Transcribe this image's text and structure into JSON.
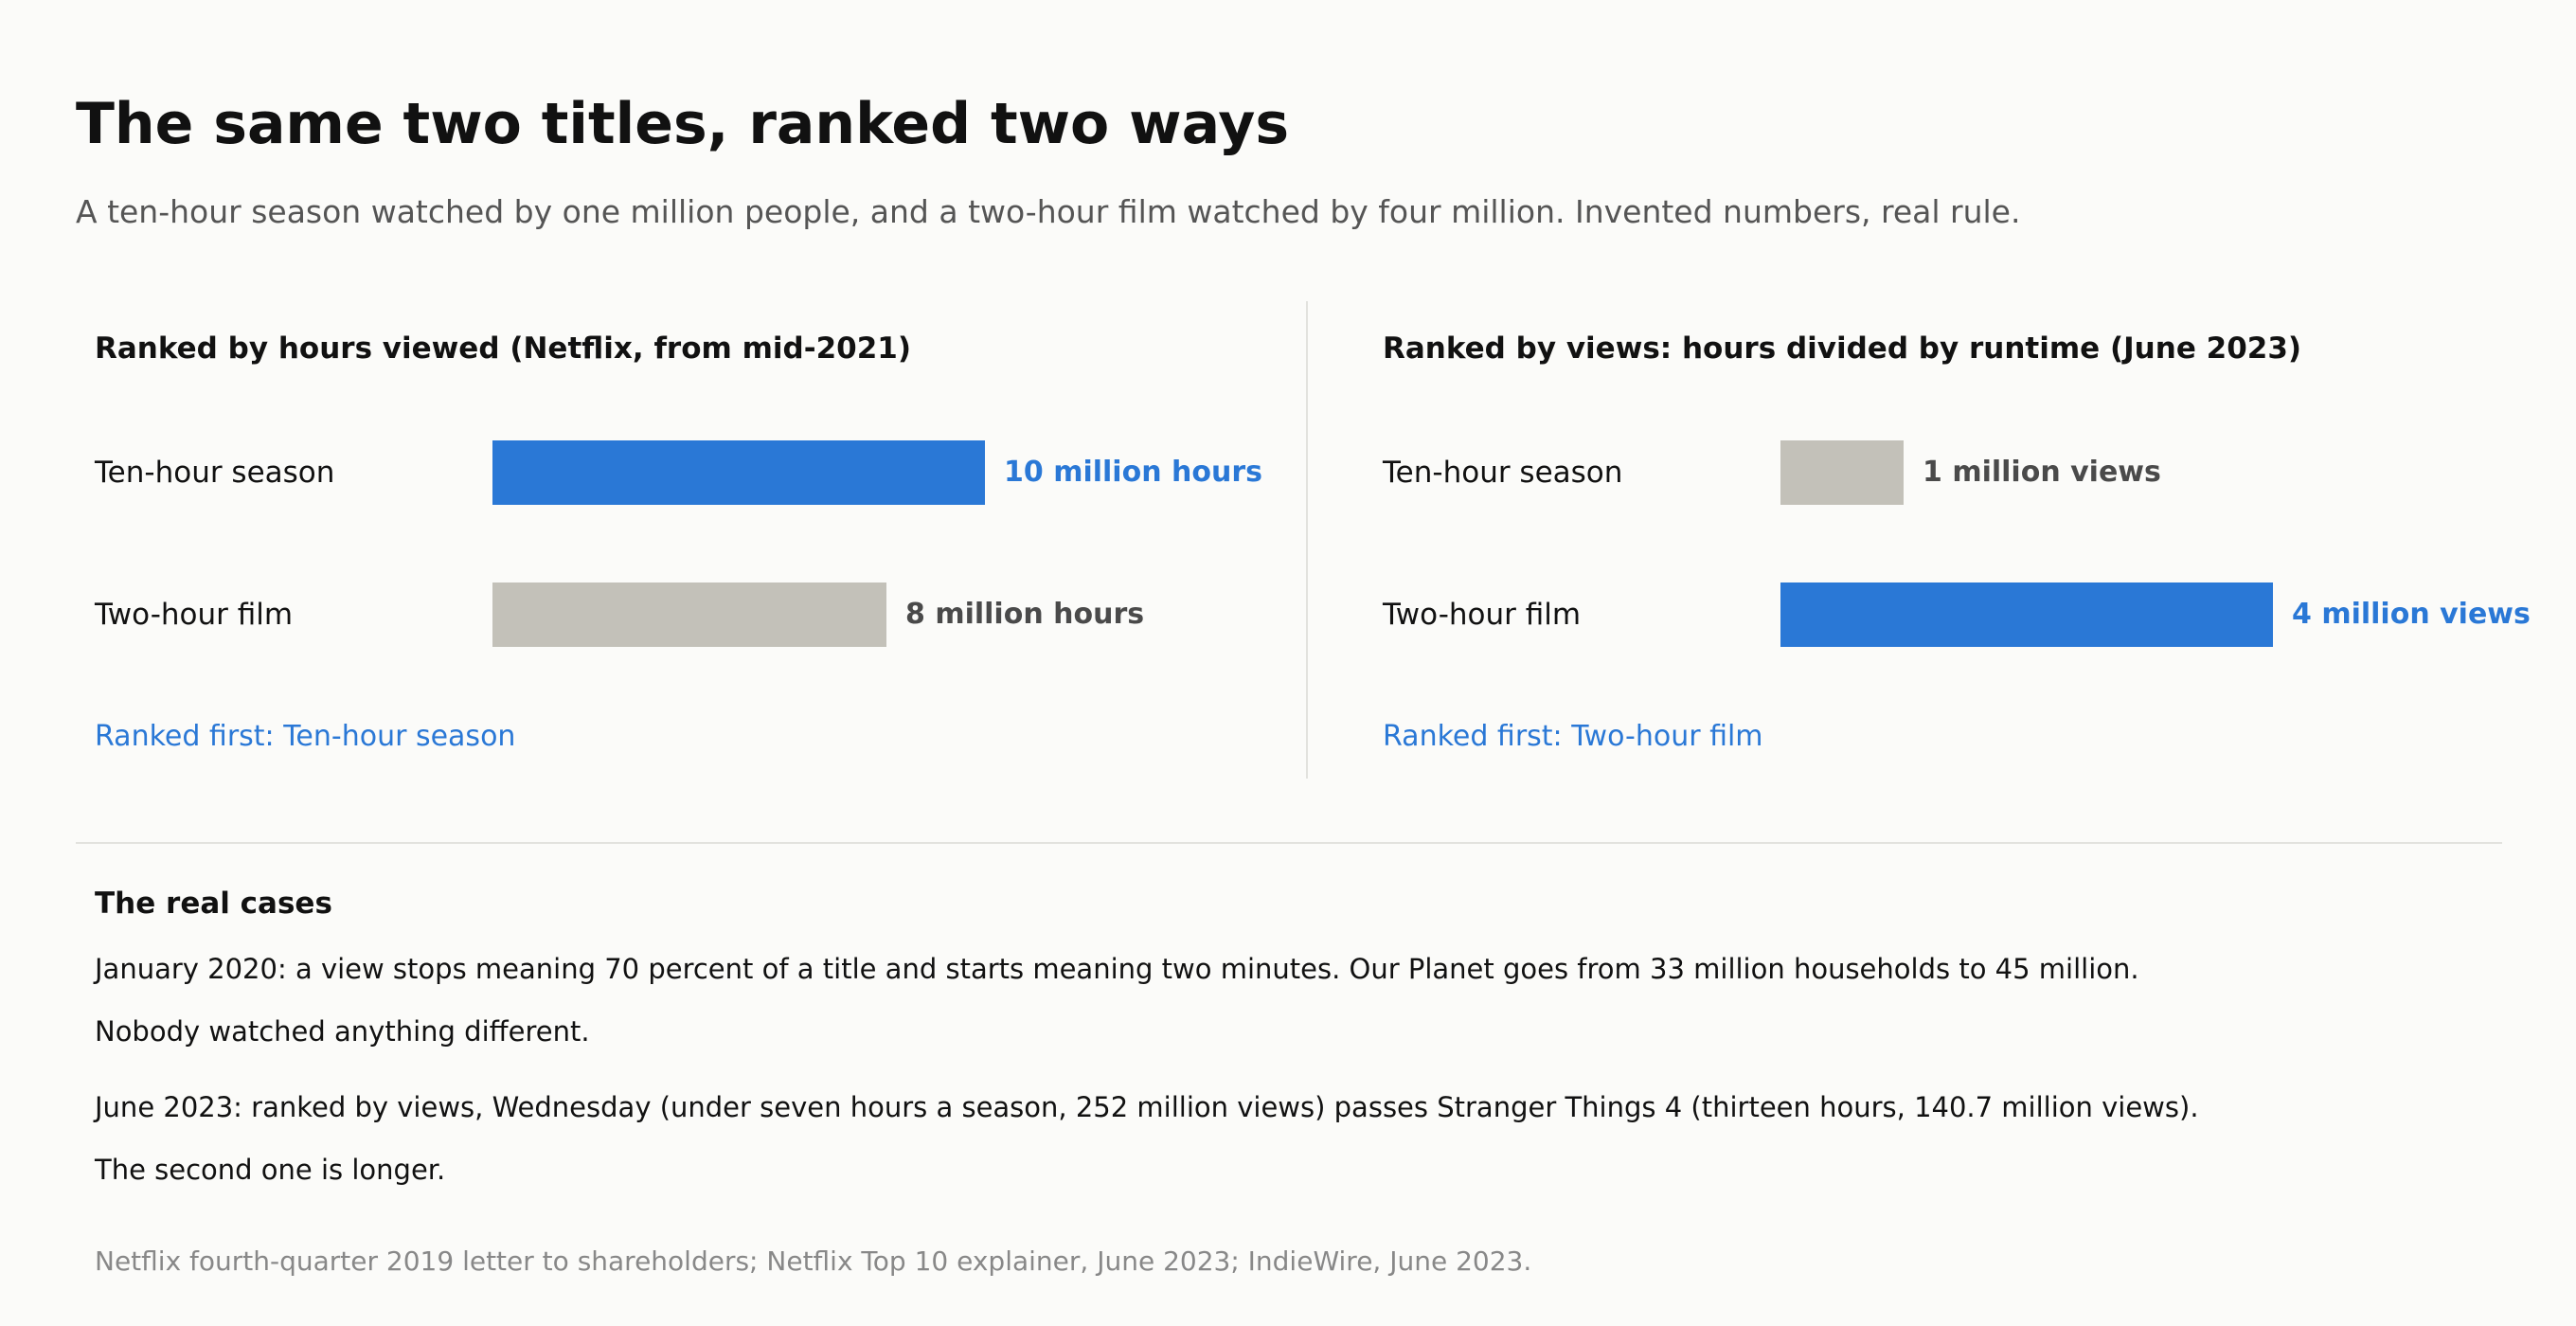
{
  "title": "The same two titles, ranked two ways",
  "subtitle": "A ten-hour season watched by one million people, and a two-hour film watched by four million. Invented numbers, real rule.",
  "colors": {
    "highlight": "#2a78d6",
    "muted_bar": "#c3c1b9",
    "muted_text": "#4a4a4a"
  },
  "chart_data": [
    {
      "type": "bar",
      "orientation": "horizontal",
      "title": "Ranked by hours viewed (Netflix, from mid-2021)",
      "categories": [
        "Ten-hour season",
        "Two-hour film"
      ],
      "values": [
        10,
        8
      ],
      "value_labels": [
        "10 million hours",
        "8 million hours"
      ],
      "unit": "million hours",
      "xlim": [
        0,
        10
      ],
      "highlight_index": 0,
      "ranked_first": "Ranked first: Ten-hour season"
    },
    {
      "type": "bar",
      "orientation": "horizontal",
      "title": "Ranked by views: hours divided by runtime (June 2023)",
      "categories": [
        "Ten-hour season",
        "Two-hour film"
      ],
      "values": [
        1,
        4
      ],
      "value_labels": [
        "1 million views",
        "4 million views"
      ],
      "unit": "million views",
      "xlim": [
        0,
        4
      ],
      "highlight_index": 1,
      "ranked_first": "Ranked first: Two-hour film"
    }
  ],
  "cases": {
    "title": "The real cases",
    "paragraphs": [
      {
        "lines": [
          "January 2020: a view stops meaning 70 percent of a title and starts meaning two minutes. Our Planet goes from 33 million households to 45 million.",
          "Nobody watched anything different."
        ]
      },
      {
        "lines": [
          "June 2023: ranked by views, Wednesday (under seven hours a season, 252 million views) passes Stranger Things 4 (thirteen hours, 140.7 million views).",
          "The second one is longer."
        ]
      }
    ]
  },
  "source": "Netflix fourth-quarter 2019 letter to shareholders; Netflix Top 10 explainer, June 2023; IndieWire, June 2023."
}
